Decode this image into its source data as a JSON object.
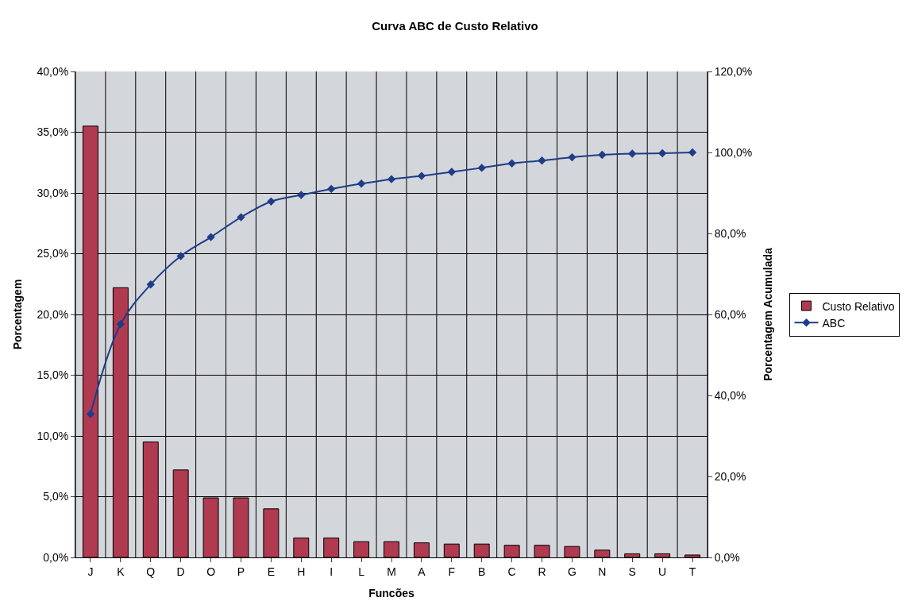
{
  "chart_data": {
    "type": "bar",
    "title": "Curva ABC de Custo Relativo",
    "xlabel": "Funcões",
    "ylabel": "Porcentagem",
    "y2label": "Porcentagem Acumulada",
    "categories": [
      "J",
      "K",
      "Q",
      "D",
      "O",
      "P",
      "E",
      "H",
      "I",
      "L",
      "M",
      "A",
      "F",
      "B",
      "C",
      "R",
      "G",
      "N",
      "S",
      "U",
      "T"
    ],
    "series": [
      {
        "name": "Custo Relativo",
        "color": "#b03a50",
        "values": [
          35.5,
          22.2,
          9.5,
          7.2,
          4.9,
          4.9,
          4.0,
          1.6,
          1.6,
          1.3,
          1.3,
          1.2,
          1.1,
          1.1,
          1.0,
          1.0,
          0.9,
          0.6,
          0.3,
          0.3,
          0.2
        ]
      },
      {
        "name": "ABC",
        "type": "line",
        "axis": "y2",
        "color": "#1f3c88",
        "marker": "diamond",
        "values": [
          35.4,
          57.6,
          67.4,
          74.4,
          79.1,
          84.0,
          87.9,
          89.5,
          91.0,
          92.3,
          93.4,
          94.2,
          95.2,
          96.2,
          97.3,
          98.0,
          98.8,
          99.4,
          99.7,
          99.8,
          100.0
        ]
      }
    ],
    "ylim": [
      0,
      40
    ],
    "yticks": [
      {
        "value": 0,
        "label": "0,0%"
      },
      {
        "value": 5,
        "label": "5,0%"
      },
      {
        "value": 10,
        "label": "10,0%"
      },
      {
        "value": 15,
        "label": "15,0%"
      },
      {
        "value": 20,
        "label": "20,0%"
      },
      {
        "value": 25,
        "label": "25,0%"
      },
      {
        "value": 30,
        "label": "30,0%"
      },
      {
        "value": 35,
        "label": "35,0%"
      },
      {
        "value": 40,
        "label": "40,0%"
      }
    ],
    "y2lim": [
      0,
      120
    ],
    "y2ticks": [
      {
        "value": 0,
        "label": "0,0%"
      },
      {
        "value": 20,
        "label": "20,0%"
      },
      {
        "value": 40,
        "label": "40,0%"
      },
      {
        "value": 60,
        "label": "60,0%"
      },
      {
        "value": 80,
        "label": "80,0%"
      },
      {
        "value": 100,
        "label": "100,0%"
      },
      {
        "value": 120,
        "label": "120,0%"
      }
    ],
    "grid": true,
    "legend": "right"
  }
}
